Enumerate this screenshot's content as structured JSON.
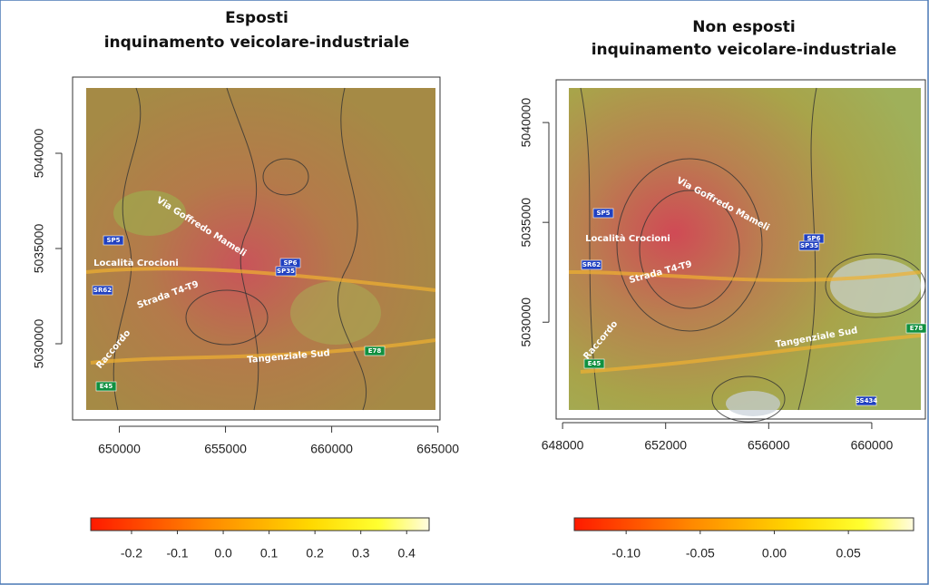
{
  "chart_data": [
    {
      "type": "map",
      "title": "Esposti",
      "subtitle": "inquinamento veicolare-industriale",
      "xlim": [
        647800,
        665100
      ],
      "xticks": [
        650000,
        655000,
        660000,
        665000
      ],
      "ylim": [
        5026000,
        5044000
      ],
      "yticks": [
        5030000,
        5035000,
        5040000
      ],
      "colorbar": {
        "lim": [
          -0.289,
          0.449
        ],
        "ticks": [
          -0.2,
          -0.1,
          {
            "value": 0,
            "label": "0.0"
          },
          0.1,
          0.2,
          0.3,
          0.4
        ]
      },
      "map_labels": [
        "SP5",
        "Località Crocioni",
        "SR62",
        "Via Goffredo Mameli",
        "Strada T4-T9",
        "SP6",
        "SP35",
        "Raccordo",
        "Tangenziale Sud",
        "E78",
        "E45"
      ]
    },
    {
      "type": "map",
      "title": "Non esposti",
      "subtitle": "inquinamento veicolare-industriale",
      "xlim": [
        647750,
        662080
      ],
      "xticks": [
        648000,
        652000,
        656000,
        660000
      ],
      "ylim": [
        5025150,
        5042140
      ],
      "yticks": [
        5030000,
        5035000,
        5040000
      ],
      "colorbar": {
        "lim": [
          -0.135,
          0.094
        ],
        "ticks": [
          {
            "value": -0.1,
            "label": "-0.10"
          },
          -0.05,
          {
            "value": 0,
            "label": "0.00"
          },
          0.05
        ]
      },
      "map_labels": [
        "SP5",
        "Località Crocioni",
        "SR62",
        "Via Goffredo Mameli",
        "Strada T4-T9",
        "SP6",
        "SP35",
        "Raccordo",
        "Tangenziale Sud",
        "E78",
        "E45",
        "SS434"
      ]
    }
  ]
}
